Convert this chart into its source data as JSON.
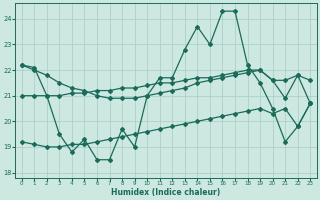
{
  "xlabel": "Humidex (Indice chaleur)",
  "bg_color": "#cce8e0",
  "grid_color": "#a8ccc4",
  "line_color": "#1a6b5a",
  "xlim": [
    -0.5,
    23.5
  ],
  "ylim": [
    17.8,
    24.6
  ],
  "xticks": [
    0,
    1,
    2,
    3,
    4,
    5,
    6,
    7,
    8,
    9,
    10,
    11,
    12,
    13,
    14,
    15,
    16,
    17,
    18,
    19,
    20,
    21,
    22,
    23
  ],
  "yticks": [
    18,
    19,
    20,
    21,
    22,
    23,
    24
  ],
  "line_jagged_x": [
    0,
    1,
    2,
    3,
    4,
    5,
    6,
    7,
    8,
    9,
    10,
    11,
    12,
    13,
    14,
    15,
    16,
    17,
    18,
    19,
    20,
    21,
    22,
    23
  ],
  "line_jagged_y": [
    22.2,
    22.1,
    21.0,
    19.5,
    18.8,
    19.3,
    18.5,
    18.5,
    19.7,
    19.0,
    21.0,
    21.7,
    21.7,
    22.8,
    23.7,
    23.0,
    24.3,
    24.3,
    22.2,
    21.5,
    20.5,
    19.2,
    19.8,
    20.7
  ],
  "line_desc_x": [
    0,
    1,
    2,
    3,
    4,
    5,
    6,
    7,
    8,
    9,
    10,
    11,
    12,
    13,
    14,
    15,
    16,
    17,
    18,
    19,
    20,
    21,
    22,
    23
  ],
  "line_desc_y": [
    22.2,
    22.0,
    21.8,
    21.5,
    21.3,
    21.2,
    21.0,
    20.9,
    20.9,
    20.9,
    21.0,
    21.1,
    21.2,
    21.3,
    21.5,
    21.6,
    21.7,
    21.8,
    21.9,
    22.0,
    21.6,
    20.9,
    21.8,
    20.7
  ],
  "line_mid_x": [
    0,
    1,
    2,
    3,
    4,
    5,
    6,
    7,
    8,
    9,
    10,
    11,
    12,
    13,
    14,
    15,
    16,
    17,
    18,
    19,
    20,
    21,
    22,
    23
  ],
  "line_mid_y": [
    21.0,
    21.0,
    21.0,
    21.0,
    21.1,
    21.1,
    21.2,
    21.2,
    21.3,
    21.3,
    21.4,
    21.5,
    21.5,
    21.6,
    21.7,
    21.7,
    21.8,
    21.9,
    22.0,
    22.0,
    21.6,
    21.6,
    21.8,
    21.6
  ],
  "line_bot_x": [
    0,
    1,
    2,
    3,
    4,
    5,
    6,
    7,
    8,
    9,
    10,
    11,
    12,
    13,
    14,
    15,
    16,
    17,
    18,
    19,
    20,
    21,
    22,
    23
  ],
  "line_bot_y": [
    19.2,
    19.1,
    19.0,
    19.0,
    19.1,
    19.1,
    19.2,
    19.3,
    19.4,
    19.5,
    19.6,
    19.7,
    19.8,
    19.9,
    20.0,
    20.1,
    20.2,
    20.3,
    20.4,
    20.5,
    20.3,
    20.5,
    19.8,
    20.7
  ]
}
